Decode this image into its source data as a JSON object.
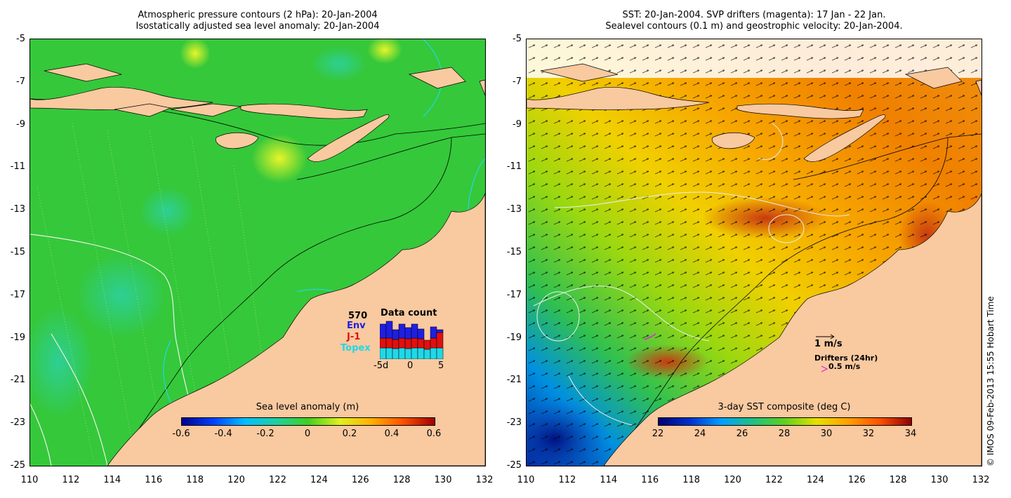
{
  "left": {
    "title_line1": "Atmospheric pressure contours (2 hPa): 20-Jan-2004",
    "title_line2": "Isostatically adjusted sea level anomaly: 20-Jan-2004",
    "colorbar": {
      "title": "Sea level anomaly (m)",
      "ticks": [
        "-0.6",
        "-0.4",
        "-0.2",
        "0",
        "0.2",
        "0.4",
        "0.6"
      ]
    },
    "data_count": {
      "title": "Data count",
      "total": "570",
      "envisat": "Env",
      "jason": "J-1",
      "topex": "Topex",
      "x_ticks": [
        "-5d",
        "0",
        "5"
      ],
      "colors": {
        "envisat": "#1f1fe0",
        "jason": "#e01010",
        "topex": "#20d8e8"
      }
    }
  },
  "right": {
    "title_line1": "SST: 20-Jan-2004. SVP drifters (magenta): 17 Jan - 22 Jan.",
    "title_line2": "Sealevel contours (0.1 m) and geostrophic velocity: 20-Jan-2004.",
    "colorbar": {
      "title": "3-day SST composite (deg C)",
      "ticks": [
        "22",
        "24",
        "26",
        "28",
        "30",
        "32",
        "34"
      ]
    },
    "velocity_scale": "1 m/s",
    "drifters_label": "Drifters (24hr)",
    "drifter_scale": "0.5 m/s"
  },
  "axes": {
    "x_ticks": [
      "110",
      "112",
      "114",
      "116",
      "118",
      "120",
      "122",
      "124",
      "126",
      "128",
      "130",
      "132"
    ],
    "y_ticks": [
      "-5",
      "-7",
      "-9",
      "-11",
      "-13",
      "-15",
      "-17",
      "-19",
      "-21",
      "-23",
      "-25"
    ],
    "xlim": [
      110,
      132
    ],
    "ylim": [
      -25,
      -5
    ]
  },
  "copyright": "© IMOS 09-Feb-2013 15:55 Hobart Time",
  "colors": {
    "land": "#f9c9a0",
    "coast": "#000000"
  }
}
